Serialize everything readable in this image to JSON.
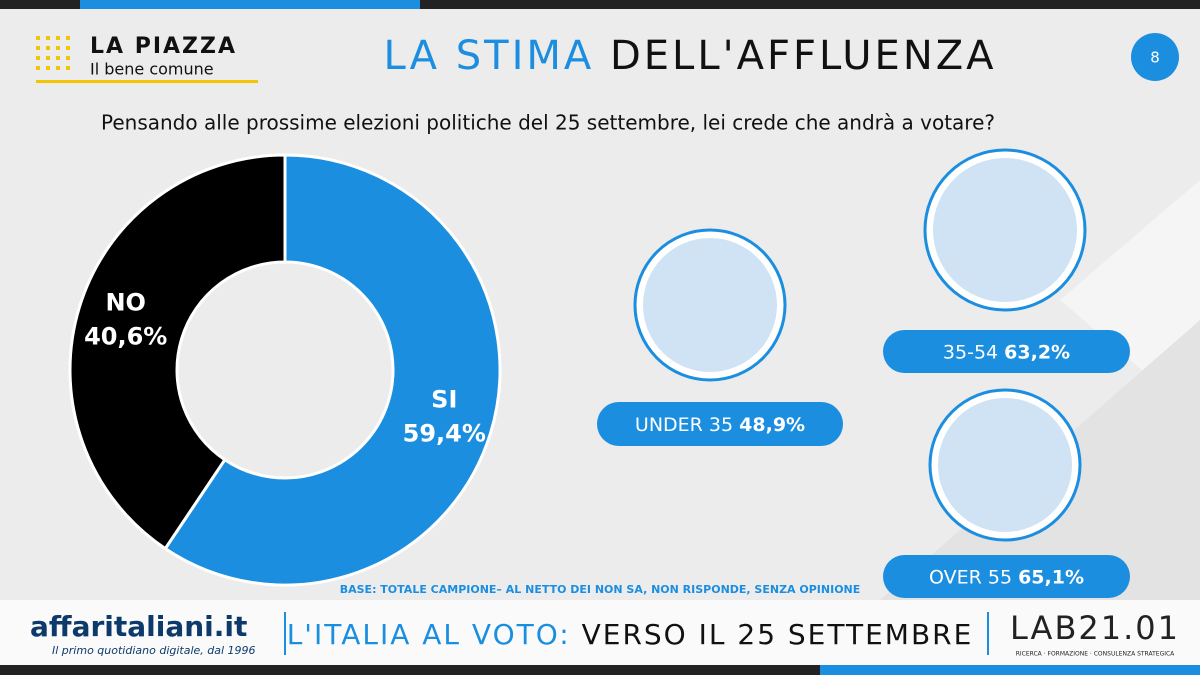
{
  "header": {
    "brand": "LA PIAZZA",
    "tagline": "Il bene comune",
    "page_number": "8"
  },
  "title": {
    "highlight": "LA STIMA",
    "rest": "DELL'AFFLUENZA"
  },
  "question": "Pensando alle prossime elezioni politiche del 25 settembre, lei crede che andrà a votare?",
  "chart_data": {
    "type": "donut",
    "categories": [
      "SI",
      "NO"
    ],
    "values": [
      59.4,
      40.6
    ],
    "value_labels": [
      "59,4%",
      "40,6%"
    ],
    "colors": [
      "#1b8ee0",
      "#000000"
    ]
  },
  "age_groups": [
    {
      "label": "UNDER 35",
      "value": "48,9%"
    },
    {
      "label": "35-54",
      "value": "63,2%"
    },
    {
      "label": "OVER 55",
      "value": "65,1%"
    }
  ],
  "base_note": "BASE: TOTALE CAMPIONE– AL NETTO DEI NON SA, NON RISPONDE, SENZA OPINIONE",
  "footer": {
    "publisher": "affaritaliani.it",
    "publisher_tagline": "Il primo quotidiano digitale, dal 1996",
    "campaign_highlight": "L'ITALIA AL VOTO:",
    "campaign_rest": "VERSO IL 25 SETTEMBRE",
    "lab": "LAB21.01",
    "lab_tagline": "RICERCA · FORMAZIONE · CONSULENZA STRATEGICA"
  }
}
